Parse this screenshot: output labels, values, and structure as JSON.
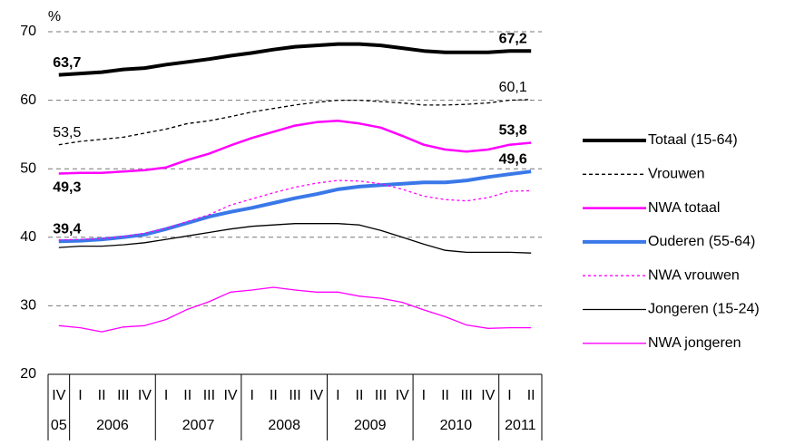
{
  "chart_data": {
    "type": "line",
    "y_label": "%",
    "groups": [
      {
        "label": "05",
        "categories": [
          "IV"
        ]
      },
      {
        "label": "2006",
        "categories": [
          "I",
          "II",
          "III",
          "IV"
        ]
      },
      {
        "label": "2007",
        "categories": [
          "I",
          "II",
          "III",
          "IV"
        ]
      },
      {
        "label": "2008",
        "categories": [
          "I",
          "II",
          "III",
          "IV"
        ]
      },
      {
        "label": "2009",
        "categories": [
          "I",
          "II",
          "III",
          "IV"
        ]
      },
      {
        "label": "2010",
        "categories": [
          "I",
          "II",
          "III",
          "IV"
        ]
      },
      {
        "label": "2011",
        "categories": [
          "I",
          "II"
        ]
      }
    ],
    "ylim": [
      20,
      70
    ],
    "yticks": [
      20,
      30,
      40,
      50,
      60,
      70
    ],
    "grid": true,
    "legend": "right",
    "series": [
      {
        "name": "Totaal (15-64)",
        "color": "#000000",
        "line_width": 4,
        "dash": "solid",
        "values": [
          63.7,
          63.9,
          64.1,
          64.5,
          64.7,
          65.2,
          65.6,
          66.0,
          66.5,
          66.9,
          67.4,
          67.8,
          68.0,
          68.2,
          68.2,
          68.0,
          67.6,
          67.2,
          67.0,
          67.0,
          67.0,
          67.2,
          67.2
        ],
        "value_labels": [
          "63,7",
          null,
          null,
          null,
          null,
          null,
          null,
          null,
          null,
          null,
          null,
          null,
          null,
          null,
          null,
          null,
          null,
          null,
          null,
          null,
          null,
          null,
          "67,2"
        ]
      },
      {
        "name": "Vrouwen",
        "color": "#000000",
        "line_width": 1.3,
        "dash": "dashed",
        "values": [
          53.5,
          54.0,
          54.3,
          54.6,
          55.2,
          55.8,
          56.6,
          57.0,
          57.6,
          58.3,
          58.8,
          59.3,
          59.7,
          60.0,
          60.0,
          59.8,
          59.6,
          59.3,
          59.3,
          59.4,
          59.6,
          60.0,
          60.1
        ],
        "value_labels": [
          "53,5",
          null,
          null,
          null,
          null,
          null,
          null,
          null,
          null,
          null,
          null,
          null,
          null,
          null,
          null,
          null,
          null,
          null,
          null,
          null,
          null,
          null,
          "60,1"
        ]
      },
      {
        "name": "NWA totaal",
        "color": "#ff00ff",
        "line_width": 2.5,
        "dash": "solid",
        "values": [
          49.3,
          49.4,
          49.4,
          49.6,
          49.8,
          50.2,
          51.3,
          52.2,
          53.4,
          54.5,
          55.4,
          56.3,
          56.8,
          57.0,
          56.6,
          56.0,
          54.8,
          53.5,
          52.8,
          52.5,
          52.8,
          53.5,
          53.8
        ],
        "value_labels": [
          "49,3",
          null,
          null,
          null,
          null,
          null,
          null,
          null,
          null,
          null,
          null,
          null,
          null,
          null,
          null,
          null,
          null,
          null,
          null,
          null,
          null,
          null,
          "53,8"
        ]
      },
      {
        "name": "Ouderen (55-64)",
        "color": "#3a78e8",
        "line_width": 4,
        "dash": "solid",
        "values": [
          39.4,
          39.5,
          39.7,
          40.0,
          40.4,
          41.2,
          42.1,
          43.0,
          43.7,
          44.3,
          45.0,
          45.7,
          46.3,
          47.0,
          47.4,
          47.6,
          47.8,
          48.0,
          48.0,
          48.3,
          48.8,
          49.2,
          49.6
        ],
        "value_labels": [
          "39,4",
          null,
          null,
          null,
          null,
          null,
          null,
          null,
          null,
          null,
          null,
          null,
          null,
          null,
          null,
          null,
          null,
          null,
          null,
          null,
          null,
          null,
          "49,6"
        ]
      },
      {
        "name": "NWA vrouwen",
        "color": "#ff00ff",
        "line_width": 1.3,
        "dash": "dotted",
        "values": [
          39.6,
          39.7,
          39.8,
          40.1,
          40.6,
          41.3,
          42.3,
          43.3,
          44.7,
          45.6,
          46.5,
          47.3,
          47.9,
          48.3,
          48.2,
          47.8,
          47.0,
          46.0,
          45.5,
          45.3,
          45.8,
          46.7,
          46.8
        ]
      },
      {
        "name": "Jongeren (15-24)",
        "color": "#000000",
        "line_width": 1.3,
        "dash": "solid",
        "values": [
          38.5,
          38.7,
          38.7,
          38.9,
          39.2,
          39.7,
          40.2,
          40.7,
          41.2,
          41.6,
          41.8,
          42.0,
          42.0,
          42.0,
          41.8,
          41.0,
          40.0,
          39.0,
          38.1,
          37.8,
          37.8,
          37.8,
          37.7
        ]
      },
      {
        "name": "NWA jongeren",
        "color": "#ff00ff",
        "line_width": 1.3,
        "dash": "solid",
        "values": [
          27.1,
          26.8,
          26.2,
          26.9,
          27.1,
          28.0,
          29.5,
          30.6,
          32.0,
          32.3,
          32.7,
          32.3,
          32.0,
          32.0,
          31.4,
          31.1,
          30.5,
          29.4,
          28.4,
          27.2,
          26.7,
          26.8,
          26.8
        ]
      }
    ]
  }
}
